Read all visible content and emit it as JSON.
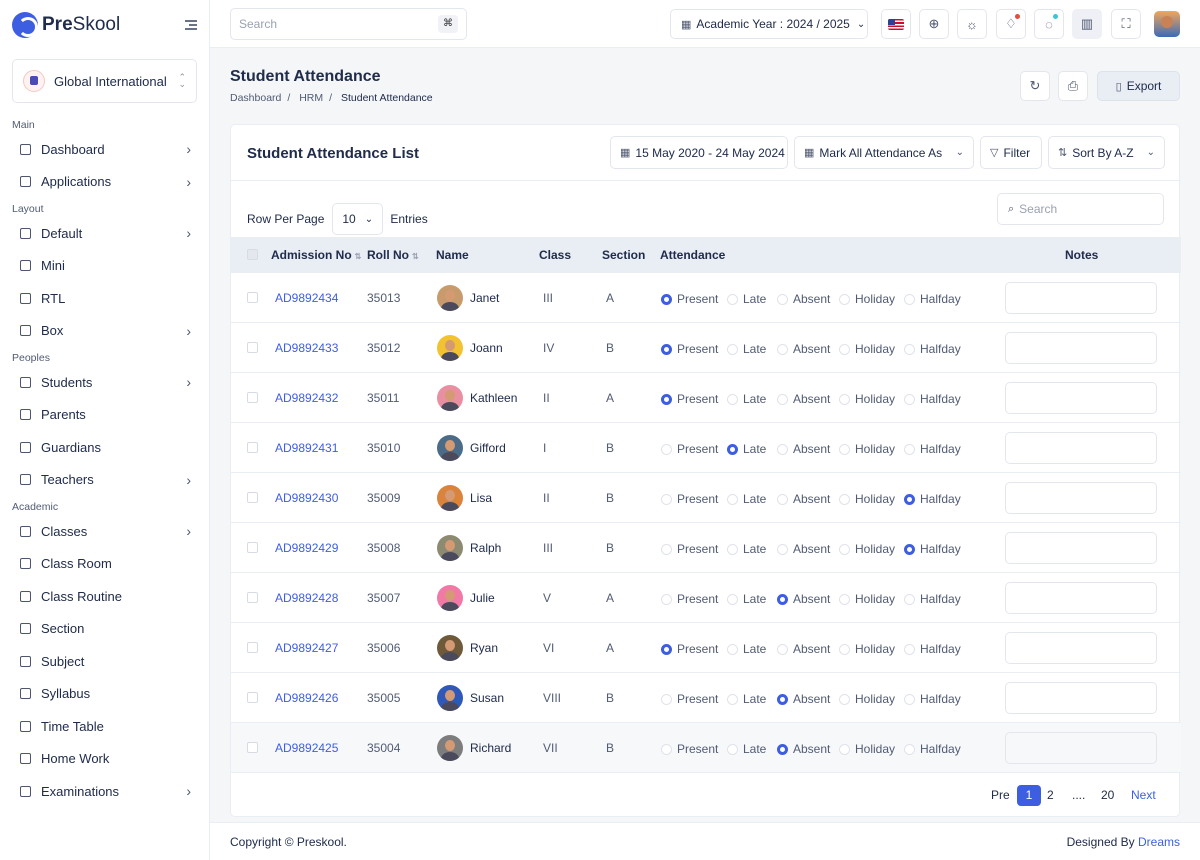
{
  "brand": {
    "bold": "Pre",
    "light": "Skool"
  },
  "school": {
    "name": "Global International"
  },
  "sidebar": {
    "sections": [
      {
        "title": "Main",
        "items": [
          {
            "label": "Dashboard",
            "icon": "grid-icon",
            "chevron": true
          },
          {
            "label": "Applications",
            "icon": "layers-icon",
            "chevron": true
          }
        ]
      },
      {
        "title": "Layout",
        "items": [
          {
            "label": "Default",
            "icon": "layout-icon",
            "chevron": true
          },
          {
            "label": "Mini",
            "icon": "mini-layout-icon",
            "chevron": false
          },
          {
            "label": "RTL",
            "icon": "rtl-icon",
            "chevron": false
          },
          {
            "label": "Box",
            "icon": "box-layout-icon",
            "chevron": true
          }
        ]
      },
      {
        "title": "Peoples",
        "items": [
          {
            "label": "Students",
            "icon": "school-icon",
            "chevron": true
          },
          {
            "label": "Parents",
            "icon": "user-icon",
            "chevron": false
          },
          {
            "label": "Guardians",
            "icon": "user-shield-icon",
            "chevron": false
          },
          {
            "label": "Teachers",
            "icon": "users-icon",
            "chevron": true
          }
        ]
      },
      {
        "title": "Academic",
        "items": [
          {
            "label": "Classes",
            "icon": "brand-icon",
            "chevron": true
          },
          {
            "label": "Class Room",
            "icon": "building-icon",
            "chevron": false
          },
          {
            "label": "Class Routine",
            "icon": "bell-school-icon",
            "chevron": false
          },
          {
            "label": "Section",
            "icon": "square-rotated-icon",
            "chevron": false
          },
          {
            "label": "Subject",
            "icon": "book-icon",
            "chevron": false
          },
          {
            "label": "Syllabus",
            "icon": "file-icon",
            "chevron": false
          },
          {
            "label": "Time Table",
            "icon": "table-icon",
            "chevron": false
          },
          {
            "label": "Home Work",
            "icon": "notebook-icon",
            "chevron": false
          },
          {
            "label": "Examinations",
            "icon": "exam-icon",
            "chevron": true
          }
        ]
      }
    ]
  },
  "topbar": {
    "search_placeholder": "Search",
    "search_shortcut": "⌘",
    "academic_year": "Academic Year : 2024 / 2025",
    "notification_dot": "#e74c3c",
    "message_dot": "#3ac5d9"
  },
  "page": {
    "title": "Student Attendance",
    "breadcrumb": [
      "Dashboard",
      "HRM",
      "Student Attendance"
    ],
    "export_label": "Export"
  },
  "card": {
    "title": "Student Attendance List",
    "date_range": "15 May 2020 - 24 May 2024",
    "mark_all": "Mark All Attendance As",
    "filter": "Filter",
    "sort": "Sort By A-Z",
    "row_per_page_label": "Row Per Page",
    "row_per_page_value": "10",
    "entries_label": "Entries",
    "search_placeholder": "Search"
  },
  "table": {
    "headers": {
      "admission": "Admission No",
      "roll": "Roll No",
      "name": "Name",
      "class": "Class",
      "section": "Section",
      "attendance": "Attendance",
      "notes": "Notes"
    },
    "attendance_options": [
      "Present",
      "Late",
      "Absent",
      "Holiday",
      "Halfday"
    ],
    "rows": [
      {
        "admission": "AD9892434",
        "roll": "35013",
        "name": "Janet",
        "class": "III",
        "section": "A",
        "status": "Present",
        "avatar": "#c89b6d"
      },
      {
        "admission": "AD9892433",
        "roll": "35012",
        "name": "Joann",
        "class": "IV",
        "section": "B",
        "status": "Present",
        "avatar": "#f2c230"
      },
      {
        "admission": "AD9892432",
        "roll": "35011",
        "name": "Kathleen",
        "class": "II",
        "section": "A",
        "status": "Present",
        "avatar": "#e88fa1"
      },
      {
        "admission": "AD9892431",
        "roll": "35010",
        "name": "Gifford",
        "class": "I",
        "section": "B",
        "status": "Late",
        "avatar": "#4b6b87"
      },
      {
        "admission": "AD9892430",
        "roll": "35009",
        "name": "Lisa",
        "class": "II",
        "section": "B",
        "status": "Halfday",
        "avatar": "#d9833c"
      },
      {
        "admission": "AD9892429",
        "roll": "35008",
        "name": "Ralph",
        "class": "III",
        "section": "B",
        "status": "Halfday",
        "avatar": "#8d8a72"
      },
      {
        "admission": "AD9892428",
        "roll": "35007",
        "name": "Julie",
        "class": "V",
        "section": "A",
        "status": "Absent",
        "avatar": "#f07aa5"
      },
      {
        "admission": "AD9892427",
        "roll": "35006",
        "name": "Ryan",
        "class": "VI",
        "section": "A",
        "status": "Present",
        "avatar": "#6e5a3a"
      },
      {
        "admission": "AD9892426",
        "roll": "35005",
        "name": "Susan",
        "class": "VIII",
        "section": "B",
        "status": "Absent",
        "avatar": "#2f58b8"
      },
      {
        "admission": "AD9892425",
        "roll": "35004",
        "name": "Richard",
        "class": "VII",
        "section": "B",
        "status": "Absent",
        "avatar": "#7d7d7d"
      }
    ]
  },
  "pagination": {
    "prev": "Pre",
    "pages": [
      "1",
      "2",
      "....",
      "20"
    ],
    "current": "1",
    "next": "Next"
  },
  "footer": {
    "copyright": "Copyright © Preskool.",
    "designed_by": "Designed By",
    "designer": "Dreams"
  }
}
